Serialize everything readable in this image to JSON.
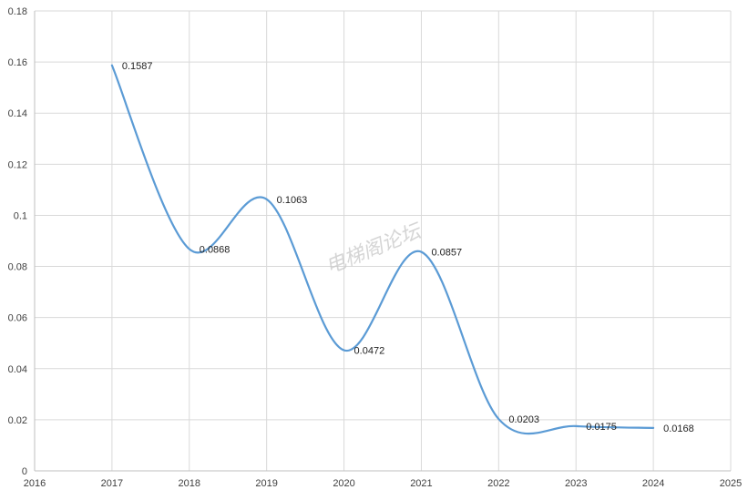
{
  "chart_data": {
    "type": "line",
    "smooth": true,
    "title": "",
    "xlabel": "",
    "ylabel": "",
    "xlim": [
      2016,
      2025
    ],
    "ylim": [
      0,
      0.18
    ],
    "x_ticks": [
      "2016",
      "2017",
      "2018",
      "2019",
      "2020",
      "2021",
      "2022",
      "2023",
      "2024",
      "2025"
    ],
    "y_ticks": [
      "0",
      "0.02",
      "0.04",
      "0.06",
      "0.08",
      "0.1",
      "0.12",
      "0.14",
      "0.16",
      "0.18"
    ],
    "grid": true,
    "legend": "none",
    "line_color": "#5b9bd5",
    "series": [
      {
        "x": [
          2017,
          2018,
          2019,
          2020,
          2021,
          2022,
          2023,
          2024
        ],
        "values": [
          0.1587,
          0.0868,
          0.1063,
          0.0472,
          0.0857,
          0.0203,
          0.0175,
          0.0168
        ],
        "labels": [
          "0.1587",
          "0.0868",
          "0.1063",
          "0.0472",
          "0.0857",
          "0.0203",
          "0.0175",
          "0.0168"
        ]
      }
    ]
  },
  "watermark": "电梯阁论坛"
}
